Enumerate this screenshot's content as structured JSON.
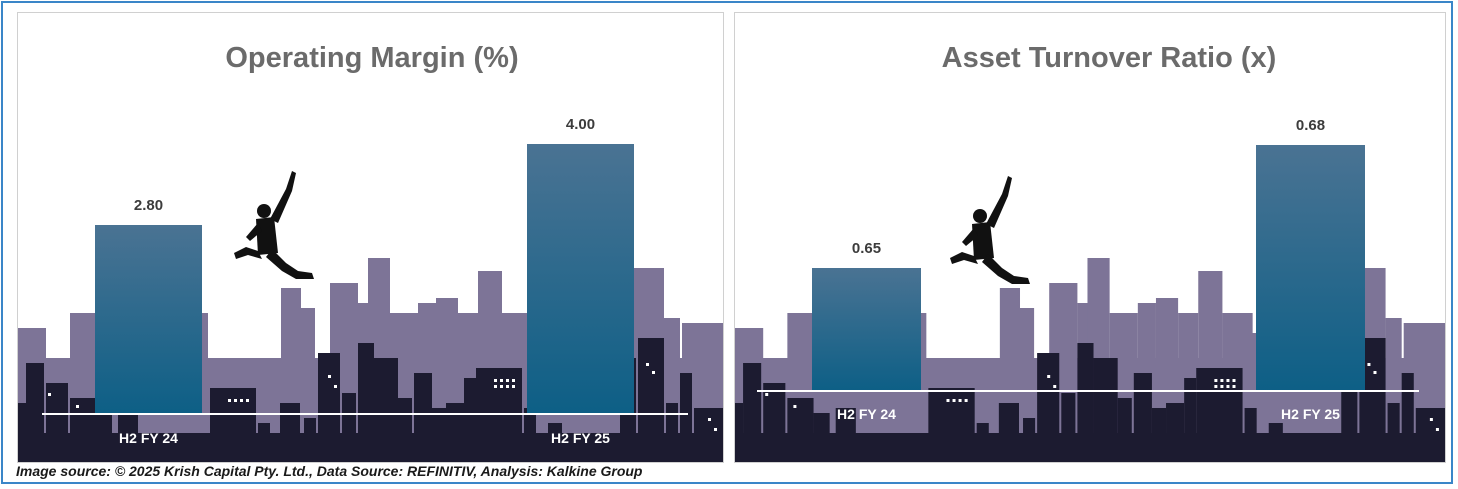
{
  "source_note": "Image source: © 2025 Krish Capital Pty. Ltd., Data Source: REFINITIV, Analysis: Kalkine Group",
  "colors": {
    "bar_top": "#4a7393",
    "bar_bottom": "#0d5f86",
    "skyline_back": "#7d7497",
    "skyline_front": "#1c1b30",
    "title": "#6b6b6b",
    "frame": "#3a86c8"
  },
  "chart_data": [
    {
      "type": "bar",
      "title": "Operating Margin (%)",
      "categories": [
        "H2 FY 24",
        "H2 FY 25"
      ],
      "values": [
        2.8,
        4.0
      ],
      "value_labels": [
        "2.80",
        "4.00"
      ],
      "xlabel": "",
      "ylabel": "",
      "ylim": [
        0,
        4.0
      ],
      "grid": false
    },
    {
      "type": "bar",
      "title": "Asset Turnover Ratio (x)",
      "categories": [
        "H2 FY 24",
        "H2 FY 25"
      ],
      "values": [
        0.65,
        0.68
      ],
      "value_labels": [
        "0.65",
        "0.68"
      ],
      "xlabel": "",
      "ylabel": "",
      "ylim": [
        0.62,
        0.68
      ],
      "grid": false
    }
  ]
}
